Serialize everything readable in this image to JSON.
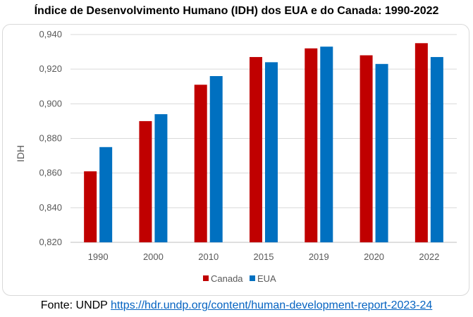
{
  "chart_data": {
    "type": "bar",
    "title": "Índice de Desenvolvimento Humano (IDH) dos EUA e do Canada: 1990-2022",
    "xlabel": "",
    "ylabel": "IDH",
    "categories": [
      "1990",
      "2000",
      "2010",
      "2015",
      "2019",
      "2020",
      "2022"
    ],
    "series": [
      {
        "name": "Canada",
        "color": "#c00000",
        "values": [
          0.861,
          0.89,
          0.911,
          0.927,
          0.932,
          0.928,
          0.935
        ]
      },
      {
        "name": "EUA",
        "color": "#0070c0",
        "values": [
          0.875,
          0.894,
          0.916,
          0.924,
          0.933,
          0.923,
          0.927
        ]
      }
    ],
    "ylim": [
      0.82,
      0.94
    ],
    "yticks": [
      "0,820",
      "0,840",
      "0,860",
      "0,880",
      "0,900",
      "0,920",
      "0,940"
    ],
    "grid": true,
    "legend_position": "bottom"
  },
  "source": {
    "prefix": "Fonte: UNDP ",
    "link_text": "https://hdr.undp.org/content/human-development-report-2023-24"
  }
}
